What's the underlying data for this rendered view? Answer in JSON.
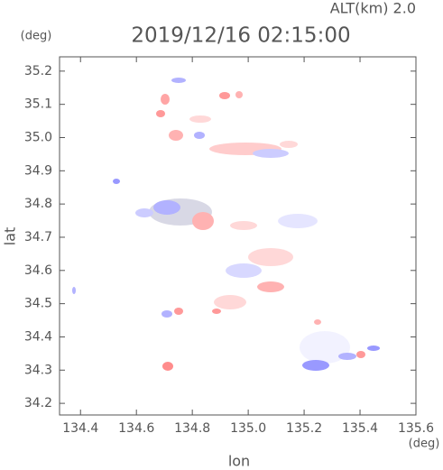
{
  "chart_data": {
    "type": "map",
    "title": "2019/12/16 02:15:00",
    "subtitle": "ALT(km) 2.0",
    "x_label": "lon",
    "y_label": "lat",
    "x_unit": "(deg)",
    "y_unit": "(deg)",
    "xlim": [
      134.325,
      135.6
    ],
    "ylim": [
      34.165,
      35.243
    ],
    "xticks": [
      134.4,
      134.6,
      134.8,
      {
        "value": 135.0,
        "label": "135.0"
      },
      135.2,
      135.4,
      135.6
    ],
    "yticks": [
      34.2,
      34.3,
      34.4,
      34.5,
      34.6,
      34.7,
      34.8,
      34.9,
      {
        "value": 35.0,
        "label": "35.0"
      },
      35.1,
      35.2
    ]
  }
}
